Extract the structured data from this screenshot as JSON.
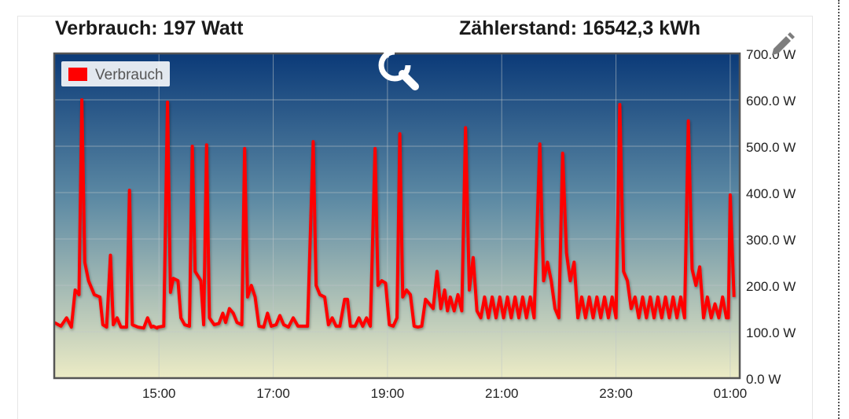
{
  "header": {
    "consumption": "Verbrauch: 197 Watt",
    "meter": "Zählerstand: 16542,3 kWh"
  },
  "icons": {
    "zoom_reset": "zoom-reset-icon",
    "edit": "pencil-icon"
  },
  "chart_data": {
    "type": "line",
    "xlabel": "",
    "ylabel": "",
    "ylim": [
      0,
      700
    ],
    "yticks": [
      {
        "value": 0,
        "label": "0.0 W"
      },
      {
        "value": 100,
        "label": "100.0 W"
      },
      {
        "value": 200,
        "label": "200.0 W"
      },
      {
        "value": 300,
        "label": "300.0 W"
      },
      {
        "value": 400,
        "label": "400.0 W"
      },
      {
        "value": 500,
        "label": "500.0 W"
      },
      {
        "value": 600,
        "label": "600.0 W"
      },
      {
        "value": 700,
        "label": "700.0 W"
      }
    ],
    "xlim": [
      "13:10",
      "01:10"
    ],
    "xticks": [
      "15:00",
      "17:00",
      "19:00",
      "21:00",
      "23:00",
      "01:00"
    ],
    "grid": true,
    "legend_position": "top-left",
    "colors": {
      "line": "#ff0000",
      "background_top": "#0b3a78",
      "background_bottom": "#ecebc5",
      "frame": "#555555"
    },
    "series": [
      {
        "name": "Verbrauch",
        "points": [
          [
            "13:10",
            120
          ],
          [
            "13:17",
            112
          ],
          [
            "13:23",
            130
          ],
          [
            "13:28",
            110
          ],
          [
            "13:32",
            190
          ],
          [
            "13:36",
            180
          ],
          [
            "13:39",
            600
          ],
          [
            "13:42",
            250
          ],
          [
            "13:46",
            210
          ],
          [
            "13:52",
            180
          ],
          [
            "13:58",
            175
          ],
          [
            "14:01",
            115
          ],
          [
            "14:05",
            110
          ],
          [
            "14:09",
            265
          ],
          [
            "14:12",
            115
          ],
          [
            "14:16",
            130
          ],
          [
            "14:20",
            110
          ],
          [
            "14:26",
            110
          ],
          [
            "14:29",
            405
          ],
          [
            "14:32",
            115
          ],
          [
            "14:38",
            110
          ],
          [
            "14:44",
            108
          ],
          [
            "14:48",
            130
          ],
          [
            "14:52",
            110
          ],
          [
            "14:58",
            108
          ],
          [
            "14:54",
            112
          ],
          [
            "14:59",
            110
          ],
          [
            "15:05",
            112
          ],
          [
            "15:09",
            595
          ],
          [
            "15:12",
            185
          ],
          [
            "15:15",
            215
          ],
          [
            "15:20",
            210
          ],
          [
            "15:23",
            130
          ],
          [
            "15:27",
            115
          ],
          [
            "15:32",
            112
          ],
          [
            "15:35",
            500
          ],
          [
            "15:38",
            230
          ],
          [
            "15:41",
            220
          ],
          [
            "15:44",
            210
          ],
          [
            "15:47",
            115
          ],
          [
            "15:50",
            503
          ],
          [
            "15:53",
            130
          ],
          [
            "15:58",
            115
          ],
          [
            "16:03",
            118
          ],
          [
            "16:07",
            140
          ],
          [
            "16:10",
            120
          ],
          [
            "16:14",
            150
          ],
          [
            "16:18",
            140
          ],
          [
            "16:22",
            120
          ],
          [
            "16:27",
            115
          ],
          [
            "16:30",
            495
          ],
          [
            "16:33",
            175
          ],
          [
            "16:37",
            200
          ],
          [
            "16:41",
            175
          ],
          [
            "16:45",
            112
          ],
          [
            "16:50",
            110
          ],
          [
            "16:54",
            140
          ],
          [
            "16:58",
            112
          ],
          [
            "17:03",
            115
          ],
          [
            "17:07",
            135
          ],
          [
            "17:11",
            115
          ],
          [
            "17:16",
            110
          ],
          [
            "17:21",
            130
          ],
          [
            "17:26",
            112
          ],
          [
            "17:31",
            112
          ],
          [
            "17:36",
            112
          ],
          [
            "17:42",
            510
          ],
          [
            "17:45",
            200
          ],
          [
            "17:49",
            180
          ],
          [
            "17:54",
            175
          ],
          [
            "17:58",
            115
          ],
          [
            "18:02",
            130
          ],
          [
            "18:06",
            112
          ],
          [
            "18:10",
            112
          ],
          [
            "18:15",
            170
          ],
          [
            "18:18",
            170
          ],
          [
            "18:21",
            112
          ],
          [
            "18:26",
            112
          ],
          [
            "18:30",
            130
          ],
          [
            "18:34",
            112
          ],
          [
            "18:38",
            130
          ],
          [
            "18:42",
            112
          ],
          [
            "18:47",
            495
          ],
          [
            "18:50",
            200
          ],
          [
            "18:54",
            210
          ],
          [
            "18:58",
            205
          ],
          [
            "19:02",
            115
          ],
          [
            "19:06",
            112
          ],
          [
            "19:10",
            130
          ],
          [
            "19:13",
            527
          ],
          [
            "19:16",
            175
          ],
          [
            "19:20",
            190
          ],
          [
            "19:24",
            180
          ],
          [
            "19:28",
            112
          ],
          [
            "19:32",
            110
          ],
          [
            "19:36",
            112
          ],
          [
            "19:40",
            170
          ],
          [
            "19:44",
            160
          ],
          [
            "19:48",
            150
          ],
          [
            "19:52",
            230
          ],
          [
            "19:56",
            150
          ],
          [
            "20:00",
            190
          ],
          [
            "20:03",
            145
          ],
          [
            "20:06",
            175
          ],
          [
            "20:10",
            145
          ],
          [
            "20:14",
            180
          ],
          [
            "20:18",
            145
          ],
          [
            "20:22",
            540
          ],
          [
            "20:26",
            190
          ],
          [
            "20:30",
            260
          ],
          [
            "20:34",
            145
          ],
          [
            "20:38",
            130
          ],
          [
            "20:42",
            175
          ],
          [
            "20:46",
            130
          ],
          [
            "20:50",
            175
          ],
          [
            "20:54",
            130
          ],
          [
            "20:58",
            175
          ],
          [
            "21:02",
            130
          ],
          [
            "21:06",
            175
          ],
          [
            "21:10",
            130
          ],
          [
            "21:14",
            175
          ],
          [
            "21:18",
            130
          ],
          [
            "21:22",
            175
          ],
          [
            "21:26",
            130
          ],
          [
            "21:30",
            175
          ],
          [
            "21:34",
            130
          ],
          [
            "21:40",
            505
          ],
          [
            "21:44",
            210
          ],
          [
            "21:48",
            250
          ],
          [
            "21:52",
            210
          ],
          [
            "21:56",
            150
          ],
          [
            "22:00",
            130
          ],
          [
            "22:04",
            485
          ],
          [
            "22:08",
            270
          ],
          [
            "22:12",
            210
          ],
          [
            "22:16",
            250
          ],
          [
            "22:20",
            130
          ],
          [
            "22:24",
            175
          ],
          [
            "22:28",
            130
          ],
          [
            "22:32",
            175
          ],
          [
            "22:36",
            130
          ],
          [
            "22:40",
            175
          ],
          [
            "22:44",
            130
          ],
          [
            "22:48",
            175
          ],
          [
            "22:52",
            130
          ],
          [
            "22:56",
            175
          ],
          [
            "23:00",
            130
          ],
          [
            "23:04",
            590
          ],
          [
            "23:08",
            230
          ],
          [
            "23:12",
            210
          ],
          [
            "23:16",
            150
          ],
          [
            "23:20",
            175
          ],
          [
            "23:24",
            130
          ],
          [
            "23:28",
            175
          ],
          [
            "23:32",
            130
          ],
          [
            "23:36",
            175
          ],
          [
            "23:40",
            130
          ],
          [
            "23:44",
            175
          ],
          [
            "23:48",
            130
          ],
          [
            "23:52",
            175
          ],
          [
            "23:56",
            130
          ],
          [
            "00:00",
            175
          ],
          [
            "00:04",
            130
          ],
          [
            "00:08",
            175
          ],
          [
            "00:12",
            130
          ],
          [
            "00:16",
            555
          ],
          [
            "00:20",
            235
          ],
          [
            "00:24",
            200
          ],
          [
            "00:28",
            240
          ],
          [
            "00:32",
            130
          ],
          [
            "00:36",
            175
          ],
          [
            "00:40",
            130
          ],
          [
            "00:44",
            160
          ],
          [
            "00:48",
            130
          ],
          [
            "00:52",
            175
          ],
          [
            "00:56",
            130
          ],
          [
            "01:00",
            395
          ],
          [
            "01:04",
            175
          ],
          [
            "00:58",
            130
          ]
        ]
      }
    ]
  }
}
